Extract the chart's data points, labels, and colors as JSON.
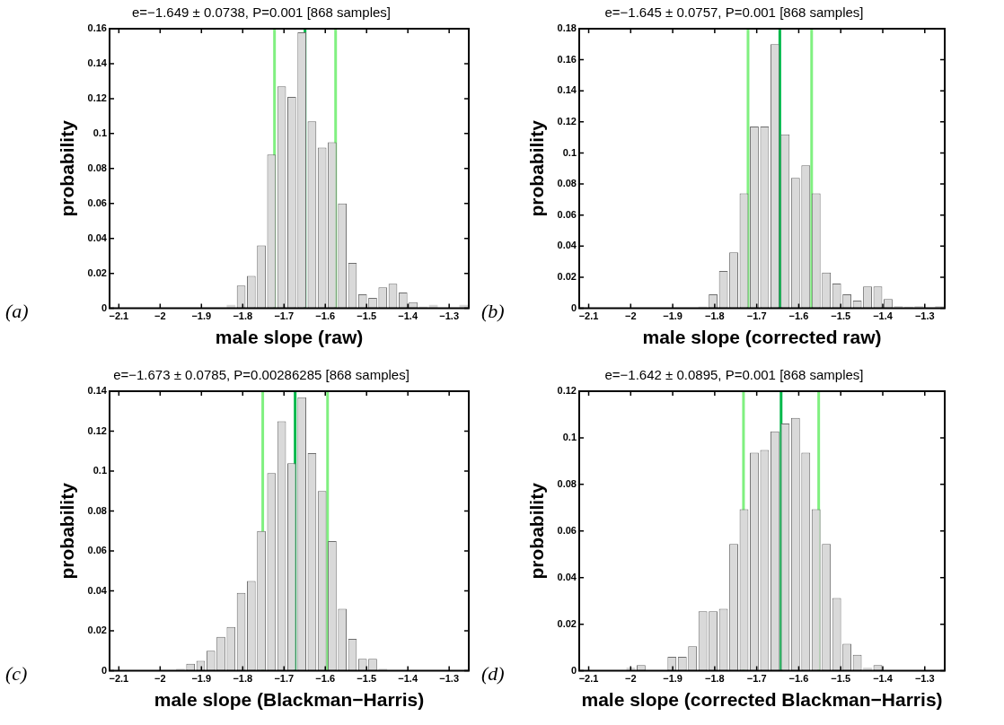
{
  "chart_data": [
    {
      "type": "histogram",
      "title": "e=−1.649 ± 0.0738, P=0.001 [868 samples]",
      "xlabel": "male slope (raw)",
      "ylabel": "probability",
      "annotations": [
        "(a)"
      ],
      "bins": [
        -2.11,
        -2.0855,
        -2.061,
        -2.0365,
        -2.012,
        -1.9875,
        -1.963,
        -1.9385,
        -1.914,
        -1.8895,
        -1.865,
        -1.8405,
        -1.816,
        -1.7915,
        -1.767,
        -1.7425,
        -1.718,
        -1.6935,
        -1.669,
        -1.6445,
        -1.62,
        -1.5955,
        -1.571,
        -1.5465,
        -1.522,
        -1.4975,
        -1.473,
        -1.4485,
        -1.424,
        -1.3995,
        -1.375,
        -1.3505,
        -1.326,
        -1.3015,
        -1.277,
        -1.2525
      ],
      "values": [
        0,
        0,
        0,
        0,
        0,
        0,
        0,
        0,
        0,
        0,
        0,
        0.002,
        0.013,
        0.0185,
        0.036,
        0.088,
        0.127,
        0.121,
        0.158,
        0.107,
        0.092,
        0.095,
        0.06,
        0.026,
        0.008,
        0.006,
        0.012,
        0.014,
        0.009,
        0.0035,
        0.001,
        0.002,
        0,
        0,
        0.002
      ],
      "color": "#d9d9d9",
      "xlim": [
        -2.1225,
        -1.2525
      ],
      "xticks": [
        {
          "value": -2.1,
          "label": "−2.1"
        },
        {
          "value": -2,
          "label": "−2"
        },
        {
          "value": -1.9,
          "label": "−1.9"
        },
        {
          "value": -1.8,
          "label": "−1.8"
        },
        {
          "value": -1.7,
          "label": "−1.7"
        },
        {
          "value": -1.6,
          "label": "−1.6"
        },
        {
          "value": -1.5,
          "label": "−1.5"
        },
        {
          "value": -1.4,
          "label": "−1.4"
        },
        {
          "value": -1.3,
          "label": "−1.3"
        }
      ],
      "ylim": [
        0,
        0.16
      ],
      "yticks": [
        0,
        0.02,
        0.04,
        0.06,
        0.08,
        0.1,
        0.12,
        0.14,
        0.16
      ],
      "ref_lines": [
        {
          "axis": "x",
          "value": -1.723,
          "color": "#80f080"
        },
        {
          "axis": "x",
          "value": -1.575,
          "color": "#80f080"
        },
        {
          "axis": "x",
          "value": -1.649,
          "color": "#00b84a"
        }
      ]
    },
    {
      "type": "histogram",
      "title": "e=−1.645 ± 0.0757, P=0.001 [868 samples]",
      "xlabel": "male slope (corrected raw)",
      "ylabel": "probability",
      "annotations": [
        "(b)"
      ],
      "bins": [
        -2.11,
        -2.0855,
        -2.061,
        -2.0365,
        -2.012,
        -1.9875,
        -1.963,
        -1.9385,
        -1.914,
        -1.8895,
        -1.865,
        -1.8405,
        -1.816,
        -1.7915,
        -1.767,
        -1.7425,
        -1.718,
        -1.6935,
        -1.669,
        -1.6445,
        -1.62,
        -1.5955,
        -1.571,
        -1.5465,
        -1.522,
        -1.4975,
        -1.473,
        -1.4485,
        -1.424,
        -1.3995,
        -1.375,
        -1.3505,
        -1.326,
        -1.3015,
        -1.277,
        -1.2525
      ],
      "values": [
        0,
        0,
        0,
        0,
        0,
        0,
        0,
        0,
        0,
        0,
        0,
        0.001,
        0.009,
        0.024,
        0.036,
        0.074,
        0.117,
        0.117,
        0.17,
        0.112,
        0.084,
        0.092,
        0.074,
        0.023,
        0.016,
        0.009,
        0.005,
        0.014,
        0.014,
        0.006,
        0.0015,
        0.001,
        0.0015,
        0,
        0.0015
      ],
      "color": "#d9d9d9",
      "xlim": [
        -2.1225,
        -1.2525
      ],
      "xticks": [
        {
          "value": -2.1,
          "label": "−2.1"
        },
        {
          "value": -2,
          "label": "−2"
        },
        {
          "value": -1.9,
          "label": "−1.9"
        },
        {
          "value": -1.8,
          "label": "−1.8"
        },
        {
          "value": -1.7,
          "label": "−1.7"
        },
        {
          "value": -1.6,
          "label": "−1.6"
        },
        {
          "value": -1.5,
          "label": "−1.5"
        },
        {
          "value": -1.4,
          "label": "−1.4"
        },
        {
          "value": -1.3,
          "label": "−1.3"
        }
      ],
      "ylim": [
        0,
        0.18
      ],
      "yticks": [
        0,
        0.02,
        0.04,
        0.06,
        0.08,
        0.1,
        0.12,
        0.14,
        0.16,
        0.18
      ],
      "ref_lines": [
        {
          "axis": "x",
          "value": -1.7207,
          "color": "#80f080"
        },
        {
          "axis": "x",
          "value": -1.5693,
          "color": "#80f080"
        },
        {
          "axis": "x",
          "value": -1.645,
          "color": "#00b84a"
        }
      ]
    },
    {
      "type": "histogram",
      "title": "e=−1.673 ± 0.0785, P=0.00286285 [868 samples]",
      "xlabel": "male slope (Blackman−Harris)",
      "ylabel": "probability",
      "annotations": [
        "(c)"
      ],
      "bins": [
        -2.11,
        -2.0855,
        -2.061,
        -2.0365,
        -2.012,
        -1.9875,
        -1.963,
        -1.9385,
        -1.914,
        -1.8895,
        -1.865,
        -1.8405,
        -1.816,
        -1.7915,
        -1.767,
        -1.7425,
        -1.718,
        -1.6935,
        -1.669,
        -1.6445,
        -1.62,
        -1.5955,
        -1.571,
        -1.5465,
        -1.522,
        -1.4975,
        -1.473,
        -1.4485,
        -1.424,
        -1.3995,
        -1.375,
        -1.3505,
        -1.326,
        -1.3015,
        -1.277,
        -1.2525
      ],
      "values": [
        0,
        0,
        0,
        0,
        0,
        0,
        0.001,
        0.0035,
        0.005,
        0.01,
        0.017,
        0.022,
        0.039,
        0.045,
        0.07,
        0.099,
        0.125,
        0.104,
        0.137,
        0.109,
        0.09,
        0.065,
        0.031,
        0.016,
        0.006,
        0.006,
        0.001,
        0,
        0,
        0,
        0,
        0,
        0,
        0,
        0
      ],
      "color": "#d9d9d9",
      "xlim": [
        -2.1225,
        -1.2525
      ],
      "xticks": [
        {
          "value": -2.1,
          "label": "−2.1"
        },
        {
          "value": -2,
          "label": "−2"
        },
        {
          "value": -1.9,
          "label": "−1.9"
        },
        {
          "value": -1.8,
          "label": "−1.8"
        },
        {
          "value": -1.7,
          "label": "−1.7"
        },
        {
          "value": -1.6,
          "label": "−1.6"
        },
        {
          "value": -1.5,
          "label": "−1.5"
        },
        {
          "value": -1.4,
          "label": "−1.4"
        },
        {
          "value": -1.3,
          "label": "−1.3"
        }
      ],
      "ylim": [
        0,
        0.14
      ],
      "yticks": [
        0,
        0.02,
        0.04,
        0.06,
        0.08,
        0.1,
        0.12,
        0.14
      ],
      "ref_lines": [
        {
          "axis": "x",
          "value": -1.7515,
          "color": "#80f080"
        },
        {
          "axis": "x",
          "value": -1.5945,
          "color": "#80f080"
        },
        {
          "axis": "x",
          "value": -1.673,
          "color": "#00b84a"
        }
      ]
    },
    {
      "type": "histogram",
      "title": "e=−1.642 ± 0.0895, P=0.001 [868 samples]",
      "xlabel": "male slope (corrected Blackman−Harris)",
      "ylabel": "probability",
      "annotations": [
        "(d)"
      ],
      "bins": [
        -2.11,
        -2.0855,
        -2.061,
        -2.0365,
        -2.012,
        -1.9875,
        -1.963,
        -1.9385,
        -1.914,
        -1.8895,
        -1.865,
        -1.8405,
        -1.816,
        -1.7915,
        -1.767,
        -1.7425,
        -1.718,
        -1.6935,
        -1.669,
        -1.6445,
        -1.62,
        -1.5955,
        -1.571,
        -1.5465,
        -1.522,
        -1.4975,
        -1.473,
        -1.4485,
        -1.424,
        -1.3995,
        -1.375,
        -1.3505,
        -1.326,
        -1.3015,
        -1.277,
        -1.2525
      ],
      "values": [
        0,
        0,
        0,
        0,
        0.0014,
        0.0024,
        0,
        0,
        0.006,
        0.006,
        0.0105,
        0.0256,
        0.0256,
        0.0266,
        0.0544,
        0.0694,
        0.0936,
        0.0948,
        0.1028,
        0.1061,
        0.1085,
        0.0936,
        0.0694,
        0.0544,
        0.0312,
        0.0116,
        0.0069,
        0.0014,
        0.0024,
        0,
        0,
        0,
        0,
        0,
        0
      ],
      "color": "#d9d9d9",
      "xlim": [
        -2.1225,
        -1.2525
      ],
      "xticks": [
        {
          "value": -2.1,
          "label": "−2.1"
        },
        {
          "value": -2,
          "label": "−2"
        },
        {
          "value": -1.9,
          "label": "−1.9"
        },
        {
          "value": -1.8,
          "label": "−1.8"
        },
        {
          "value": -1.7,
          "label": "−1.7"
        },
        {
          "value": -1.6,
          "label": "−1.6"
        },
        {
          "value": -1.5,
          "label": "−1.5"
        },
        {
          "value": -1.4,
          "label": "−1.4"
        },
        {
          "value": -1.3,
          "label": "−1.3"
        }
      ],
      "ylim": [
        0,
        0.12
      ],
      "yticks": [
        0,
        0.02,
        0.04,
        0.06,
        0.08,
        0.1,
        0.12
      ],
      "ref_lines": [
        {
          "axis": "x",
          "value": -1.7315,
          "color": "#80f080"
        },
        {
          "axis": "x",
          "value": -1.5525,
          "color": "#80f080"
        },
        {
          "axis": "x",
          "value": -1.642,
          "color": "#00b84a"
        }
      ]
    }
  ]
}
